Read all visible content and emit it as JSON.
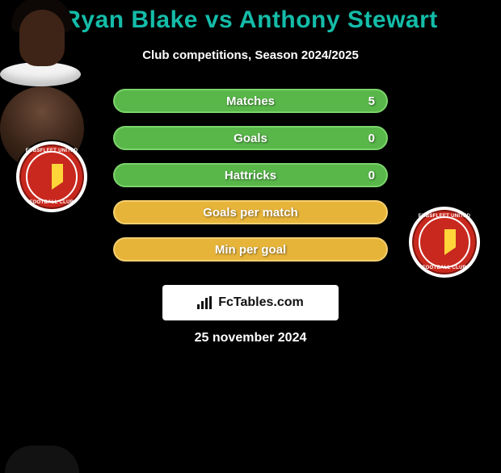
{
  "title": "Ryan Blake vs Anthony Stewart",
  "subtitle": "Club competitions, Season 2024/2025",
  "colors": {
    "title": "#14bca8",
    "text": "#ffffff",
    "pill_green_bg": "#59b74a",
    "pill_green_border": "#7cd46c",
    "pill_yellow_bg": "#e7b43a",
    "pill_yellow_border": "#f4cf6e",
    "badge_bg": "#c8281e",
    "background": "#000000"
  },
  "stats": [
    {
      "label": "Matches",
      "value": "5",
      "style": "green"
    },
    {
      "label": "Goals",
      "value": "0",
      "style": "green"
    },
    {
      "label": "Hattricks",
      "value": "0",
      "style": "green"
    },
    {
      "label": "Goals per match",
      "value": "",
      "style": "yellow"
    },
    {
      "label": "Min per goal",
      "value": "",
      "style": "yellow"
    }
  ],
  "club_badge": {
    "name": "Ebbsfleet United",
    "top_text": "EBBSFLEET UNITED",
    "bottom_text": "FOOTBALL CLUB"
  },
  "branding": "FcTables.com",
  "date": "25 november 2024",
  "players": {
    "left": {
      "name": "Ryan Blake"
    },
    "right": {
      "name": "Anthony Stewart"
    }
  }
}
